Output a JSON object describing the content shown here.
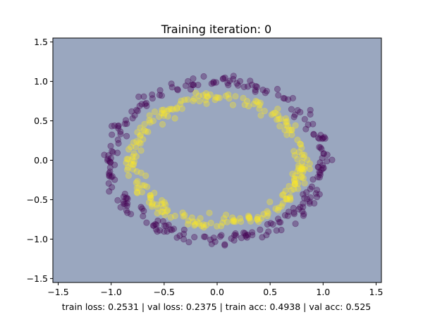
{
  "chart_data": {
    "type": "scatter",
    "title": "Training iteration: 0",
    "xlabel": "train loss: 0.2531 | val loss: 0.2375 | train acc: 0.4938 | val acc: 0.525",
    "ylabel": "",
    "xlim": [
      -1.55,
      1.55
    ],
    "ylim": [
      -1.55,
      1.55
    ],
    "xticks": [
      -1.5,
      -1.0,
      -0.5,
      0.0,
      0.5,
      1.0,
      1.5
    ],
    "yticks": [
      -1.5,
      -1.0,
      -0.5,
      0.0,
      0.5,
      1.0,
      1.5
    ],
    "xtick_labels": [
      "−1.5",
      "−1.0",
      "−0.5",
      "0.0",
      "0.5",
      "1.0",
      "1.5"
    ],
    "ytick_labels": [
      "−1.5",
      "−1.0",
      "−0.5",
      "0.0",
      "0.5",
      "1.0",
      "1.5"
    ],
    "background_color": "#9aa7bf",
    "grid": false,
    "series": [
      {
        "class": 0,
        "color": "#440154",
        "shape": "circle",
        "radius": 1.0,
        "noise": 0.04,
        "points": 250
      },
      {
        "class": 1,
        "color": "#fde725",
        "shape": "circle",
        "radius": 0.8,
        "noise": 0.04,
        "points": 250
      }
    ]
  }
}
